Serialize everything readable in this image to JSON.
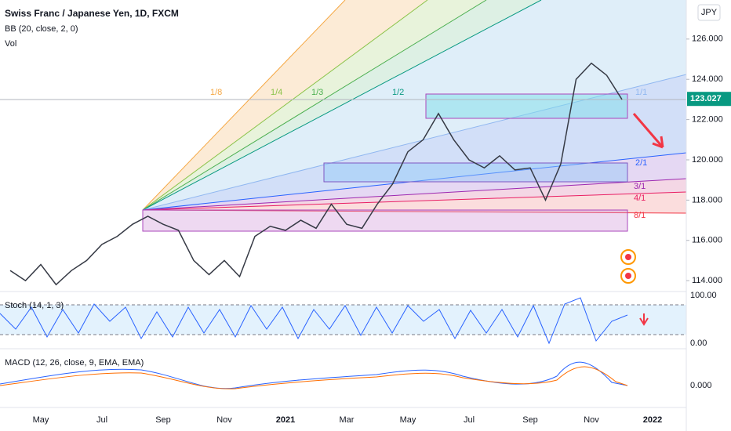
{
  "header": {
    "title": "Swiss Franc / Japanese Yen, 1D, FXCM",
    "indicator": "BB (20, close, 2, 0)",
    "volume": "Vol"
  },
  "currency": "JPY",
  "fan_labels": [
    "1/8",
    "1/4",
    "1/3",
    "1/2",
    "1/1",
    "2/1",
    "3/1",
    "4/1",
    "8/1"
  ],
  "chart_data": {
    "type": "line",
    "categories": [
      null,
      null,
      "May",
      null,
      null,
      null,
      "Jul",
      null,
      null,
      null,
      "Sep",
      null,
      null,
      null,
      "Nov",
      null,
      null,
      null,
      "2021",
      null,
      null,
      null,
      "Mar",
      null,
      null,
      null,
      "May",
      null,
      null,
      null,
      "Jul",
      null,
      null,
      null,
      "Sep",
      null,
      null,
      null,
      "Nov",
      null,
      null,
      null,
      "2022"
    ],
    "values": [
      114.5,
      114.0,
      114.8,
      113.8,
      114.5,
      115.0,
      115.8,
      116.2,
      116.8,
      117.2,
      116.8,
      116.5,
      115.0,
      114.3,
      115.0,
      114.2,
      116.2,
      116.7,
      116.5,
      117.0,
      116.6,
      117.8,
      116.8,
      116.6,
      117.8,
      118.8,
      120.4,
      121.0,
      122.3,
      121.0,
      120.0,
      119.6,
      120.2,
      119.5,
      119.6,
      118.0,
      119.8,
      124.0,
      124.8,
      124.2,
      123.0,
      null,
      null
    ],
    "color": "#363a45",
    "ylim": [
      113.46,
      127.94
    ],
    "yticks": [
      {
        "value": 114,
        "label": "114.000"
      },
      {
        "value": 116,
        "label": "116.000"
      },
      {
        "value": 118,
        "label": "118.000"
      },
      {
        "value": 120,
        "label": "120.000"
      },
      {
        "value": 122,
        "label": "122.000"
      },
      {
        "value": 124,
        "label": "124.000"
      },
      {
        "value": 126,
        "label": "126.000"
      }
    ],
    "last_price": 123.027
  },
  "stoch": {
    "label": "Stoch (14, 1, 3)",
    "ticks": [
      "100.00",
      "0.00"
    ]
  },
  "macd": {
    "label": "MACD (12, 26, close, 9, EMA, EMA)",
    "ticks": [
      "0.000"
    ]
  }
}
